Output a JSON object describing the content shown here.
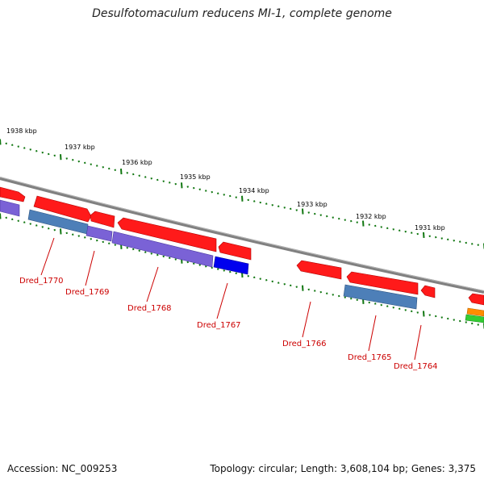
{
  "title": "Desulfotomaculum reducens MI-1, complete genome",
  "footer": {
    "accession": "Accession: NC_009253",
    "summary": "Topology: circular; Length: 3,608,104 bp; Genes: 3,375"
  },
  "scale_labels": [
    "1938 kbp",
    "1937 kbp",
    "1936 kbp",
    "1935 kbp",
    "1934 kbp",
    "1933 kbp",
    "1932 kbp",
    "1931 kbp"
  ],
  "gene_labels": [
    "Dred_1770",
    "Dred_1769",
    "Dred_1768",
    "Dred_1767",
    "Dred_1766",
    "Dred_1765",
    "Dred_1764"
  ],
  "colors": {
    "forward_cds": "#ff1a1a",
    "protein_blue": "#4d7fb8",
    "protein_purple": "#7a62d6",
    "protein_bright_blue": "#0000ee",
    "rna_orange": "#ff8c00",
    "rna_green": "#33cc33",
    "backbone": "#808080",
    "ticks": "#117711",
    "label_red": "#cc0000"
  }
}
